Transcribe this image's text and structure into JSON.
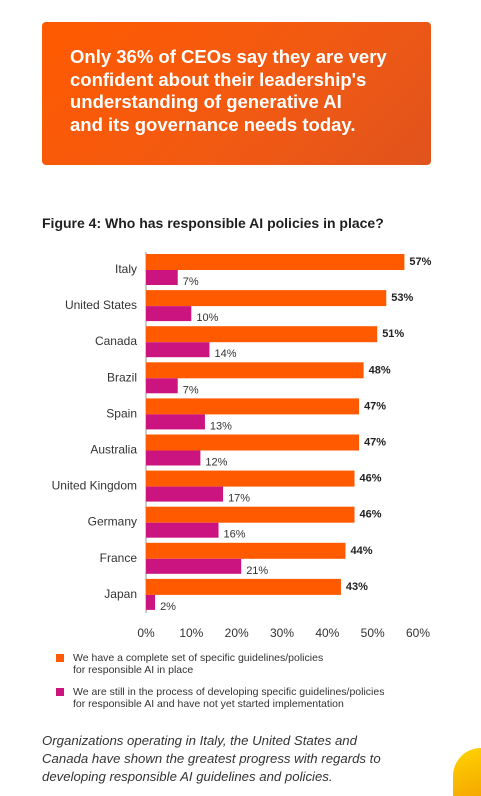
{
  "banner": {
    "lines": [
      "Only 36% of CEOs say they are very",
      "confident about their leadership's",
      "understanding of generative AI",
      "and its governance needs today."
    ]
  },
  "figure_title": "Figure 4: Who has responsible AI policies in place?",
  "legend": [
    {
      "line1": "We have a complete set of specific guidelines/policies",
      "line2": "for responsible AI in place",
      "color": "#ff5a00"
    },
    {
      "line1": "We are still in the process of developing specific guidelines/policies",
      "line2": "for responsible AI and have not yet started implementation",
      "color": "#cc1480"
    }
  ],
  "caption": {
    "lines": [
      "Organizations operating in Italy, the United States and",
      "Canada have shown the greatest progress with regards to",
      "developing responsible AI guidelines and policies."
    ]
  },
  "chart_data": {
    "type": "bar",
    "orientation": "horizontal",
    "categories": [
      "Italy",
      "United States",
      "Canada",
      "Brazil",
      "Spain",
      "Australia",
      "United Kingdom",
      "Germany",
      "France",
      "Japan"
    ],
    "series": [
      {
        "values": [
          57,
          53,
          51,
          48,
          47,
          47,
          46,
          46,
          44,
          43
        ],
        "color": "#ff5a00"
      },
      {
        "values": [
          7,
          10,
          14,
          7,
          13,
          12,
          17,
          16,
          21,
          2
        ],
        "color": "#cc1480"
      }
    ],
    "xlim": [
      0,
      60
    ],
    "xticks": [
      0,
      10,
      20,
      30,
      40,
      50,
      60
    ],
    "tick_format": "{v}%",
    "value_format": "{v}%",
    "grid": false
  }
}
